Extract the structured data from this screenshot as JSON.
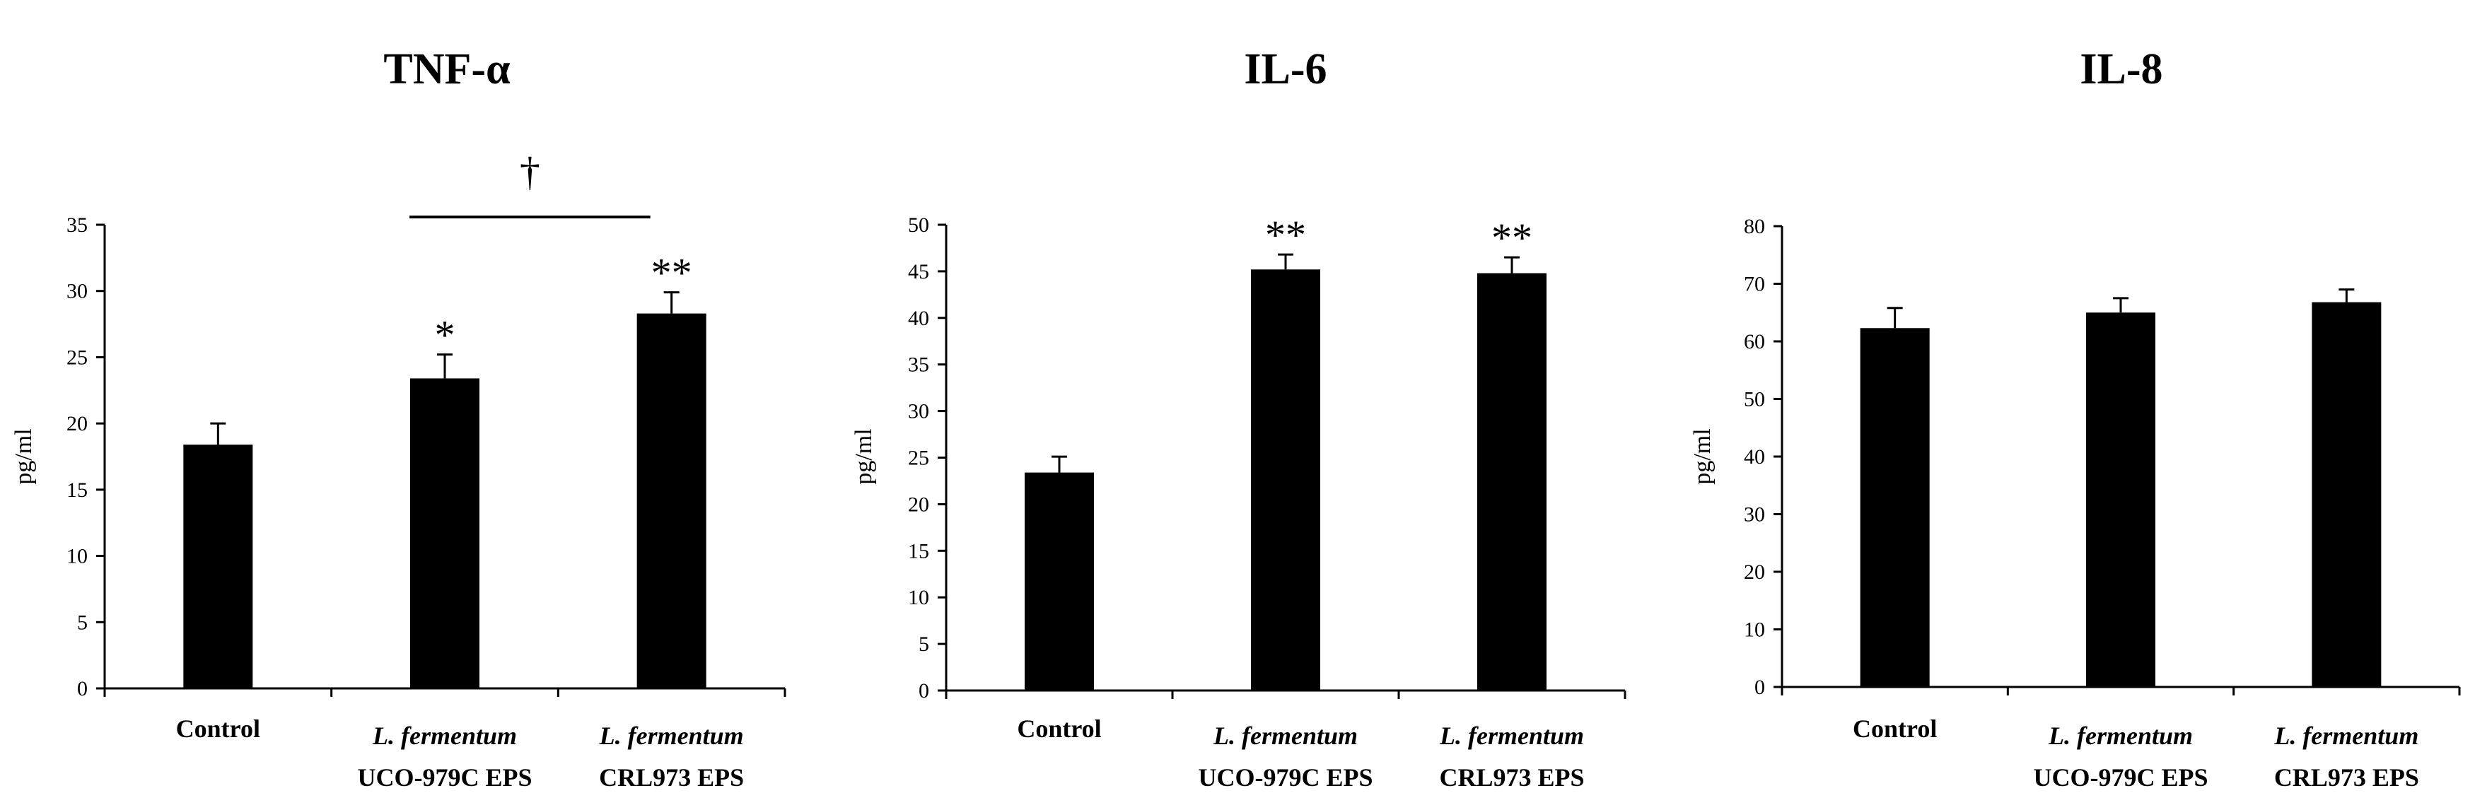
{
  "figure": {
    "background": "#ffffff",
    "bar_color": "#000000"
  },
  "chart_data": [
    {
      "type": "bar",
      "title": "TNF-α",
      "ylabel": "pg/ml",
      "xlabel": "",
      "ylim": [
        0,
        35
      ],
      "yticks": [
        0,
        5,
        10,
        15,
        20,
        25,
        30,
        35
      ],
      "categories": [
        {
          "line1": "Control",
          "line1_italic": false,
          "line2": ""
        },
        {
          "line1": "L. fermentum",
          "line1_italic": true,
          "line2": "UCO-979C EPS"
        },
        {
          "line1": "L. fermentum",
          "line1_italic": true,
          "line2": "CRL973 EPS"
        }
      ],
      "values": [
        18.4,
        23.4,
        28.3
      ],
      "errors": [
        1.6,
        1.8,
        1.6
      ],
      "significance": [
        "",
        "*",
        "**"
      ],
      "bracket": {
        "from": 1,
        "to": 2,
        "label": "†"
      }
    },
    {
      "type": "bar",
      "title": "IL-6",
      "ylabel": "pg/ml",
      "xlabel": "",
      "ylim": [
        0,
        50
      ],
      "yticks": [
        0,
        5,
        10,
        15,
        20,
        25,
        30,
        35,
        40,
        45,
        50
      ],
      "categories": [
        {
          "line1": "Control",
          "line1_italic": false,
          "line2": ""
        },
        {
          "line1": "L. fermentum",
          "line1_italic": true,
          "line2": "UCO-979C EPS"
        },
        {
          "line1": "L. fermentum",
          "line1_italic": true,
          "line2": "CRL973 EPS"
        }
      ],
      "values": [
        23.4,
        45.2,
        44.8
      ],
      "errors": [
        1.7,
        1.6,
        1.7
      ],
      "significance": [
        "",
        "**",
        "**"
      ],
      "bracket": null
    },
    {
      "type": "bar",
      "title": "IL-8",
      "ylabel": "pg/ml",
      "xlabel": "",
      "ylim": [
        0,
        80
      ],
      "yticks": [
        0,
        10,
        20,
        30,
        40,
        50,
        60,
        70,
        80
      ],
      "categories": [
        {
          "line1": "Control",
          "line1_italic": false,
          "line2": ""
        },
        {
          "line1": "L. fermentum",
          "line1_italic": true,
          "line2": "UCO-979C EPS"
        },
        {
          "line1": "L. fermentum",
          "line1_italic": true,
          "line2": "CRL973 EPS"
        }
      ],
      "values": [
        62.3,
        65.0,
        66.8
      ],
      "errors": [
        3.5,
        2.5,
        2.2
      ],
      "significance": [
        "",
        "",
        ""
      ],
      "bracket": null
    }
  ]
}
